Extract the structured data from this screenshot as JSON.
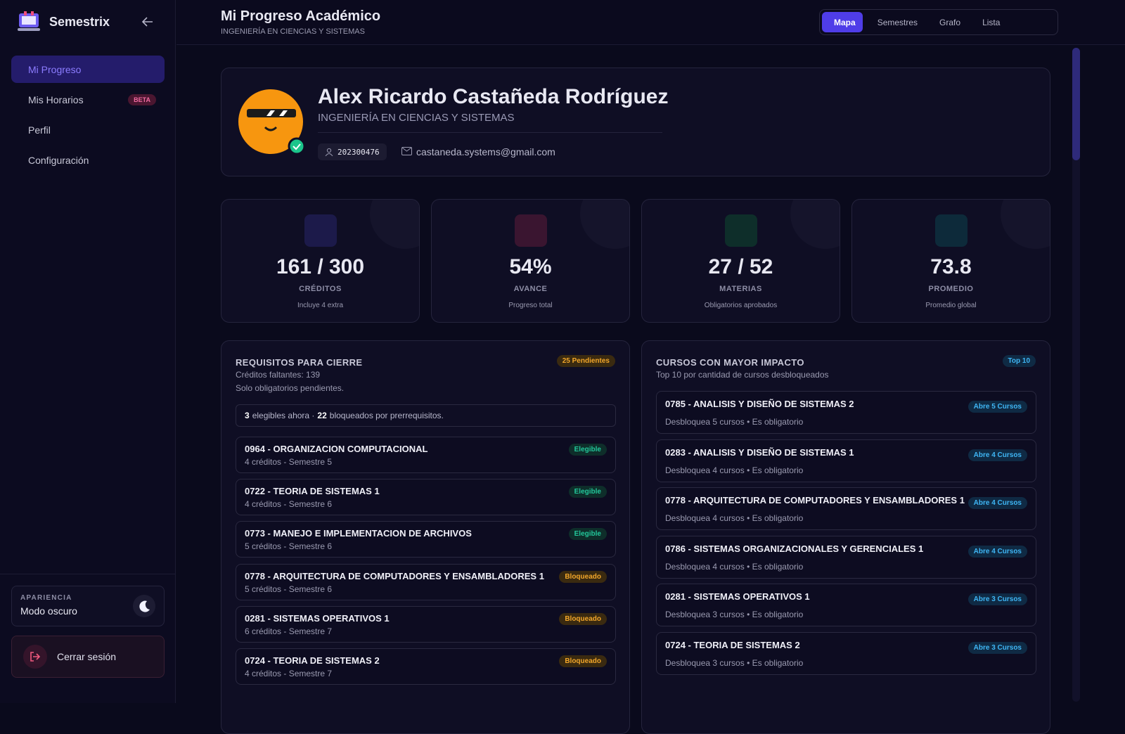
{
  "sidebar": {
    "brand": "Semestrix",
    "nav": [
      {
        "label": "Mi Progreso"
      },
      {
        "label": "Mis Horarios",
        "badge": "BETA"
      },
      {
        "label": "Perfil"
      },
      {
        "label": "Configuración"
      }
    ],
    "appearance": {
      "label": "APARIENCIA",
      "value": "Modo oscuro"
    },
    "logout": "Cerrar sesión"
  },
  "header": {
    "title": "Mi Progreso Académico",
    "subtitle": "INGENIERÍA EN CIENCIAS Y SISTEMAS",
    "views": [
      "Mapa",
      "Semestres",
      "Grafo",
      "Lista"
    ]
  },
  "profile": {
    "name": "Alex Ricardo Castañeda Rodríguez",
    "career": "INGENIERÍA EN CIENCIAS Y SISTEMAS",
    "id": "202300476",
    "email": "castaneda.systems@gmail.com"
  },
  "stats": [
    {
      "value": "161 / 300",
      "label": "CRÉDITOS",
      "note": "Incluye 4 extra"
    },
    {
      "value": "54%",
      "label": "AVANCE",
      "note": "Progreso total"
    },
    {
      "value": "27 / 52",
      "label": "MATERIAS",
      "note": "Obligatorios aprobados"
    },
    {
      "value": "73.8",
      "label": "PROMEDIO",
      "note": "Promedio global"
    }
  ],
  "requirements": {
    "title": "REQUISITOS PARA CIERRE",
    "badge": "25 Pendientes",
    "subtitle": "Créditos faltantes: 139",
    "note": "Solo obligatorios pendientes.",
    "summary": [
      "3",
      "elegibles ahora ·",
      "22",
      "bloqueados por prerrequisitos."
    ],
    "courses": [
      {
        "name": "0964 - ORGANIZACION COMPUTACIONAL",
        "detail": "4 créditos - Semestre 5",
        "status": "Elegible"
      },
      {
        "name": "0722 - TEORIA DE SISTEMAS 1",
        "detail": "4 créditos - Semestre 6",
        "status": "Elegible"
      },
      {
        "name": "0773 - MANEJO E IMPLEMENTACION DE ARCHIVOS",
        "detail": "5 créditos - Semestre 6",
        "status": "Elegible"
      },
      {
        "name": "0778 - ARQUITECTURA DE COMPUTADORES Y ENSAMBLADORES 1",
        "detail": "5 créditos - Semestre 6",
        "status": "Bloqueado"
      },
      {
        "name": "0281 - SISTEMAS OPERATIVOS 1",
        "detail": "6 créditos - Semestre 7",
        "status": "Bloqueado"
      },
      {
        "name": "0724 - TEORIA DE SISTEMAS 2",
        "detail": "4 créditos - Semestre 7",
        "status": "Bloqueado"
      }
    ]
  },
  "impact": {
    "title": "CURSOS CON MAYOR IMPACTO",
    "badge": "Top 10",
    "subtitle": "Top 10 por cantidad de cursos desbloqueados",
    "courses": [
      {
        "name": "0785 - ANALISIS Y DISEÑO DE SISTEMAS 2",
        "detail": "Desbloquea 5 cursos • Es obligatorio",
        "badge": "Abre 5 Cursos"
      },
      {
        "name": "0283 - ANALISIS Y DISEÑO DE SISTEMAS 1",
        "detail": "Desbloquea 4 cursos • Es obligatorio",
        "badge": "Abre 4 Cursos"
      },
      {
        "name": "0778 - ARQUITECTURA DE COMPUTADORES Y ENSAMBLADORES 1",
        "detail": "Desbloquea 4 cursos • Es obligatorio",
        "badge": "Abre 4 Cursos"
      },
      {
        "name": "0786 - SISTEMAS ORGANIZACIONALES Y GERENCIALES 1",
        "detail": "Desbloquea 4 cursos • Es obligatorio",
        "badge": "Abre 4 Cursos"
      },
      {
        "name": "0281 - SISTEMAS OPERATIVOS 1",
        "detail": "Desbloquea 3 cursos • Es obligatorio",
        "badge": "Abre 3 Cursos"
      },
      {
        "name": "0724 - TEORIA DE SISTEMAS 2",
        "detail": "Desbloquea 3 cursos • Es obligatorio",
        "badge": "Abre 3 Cursos"
      }
    ]
  }
}
